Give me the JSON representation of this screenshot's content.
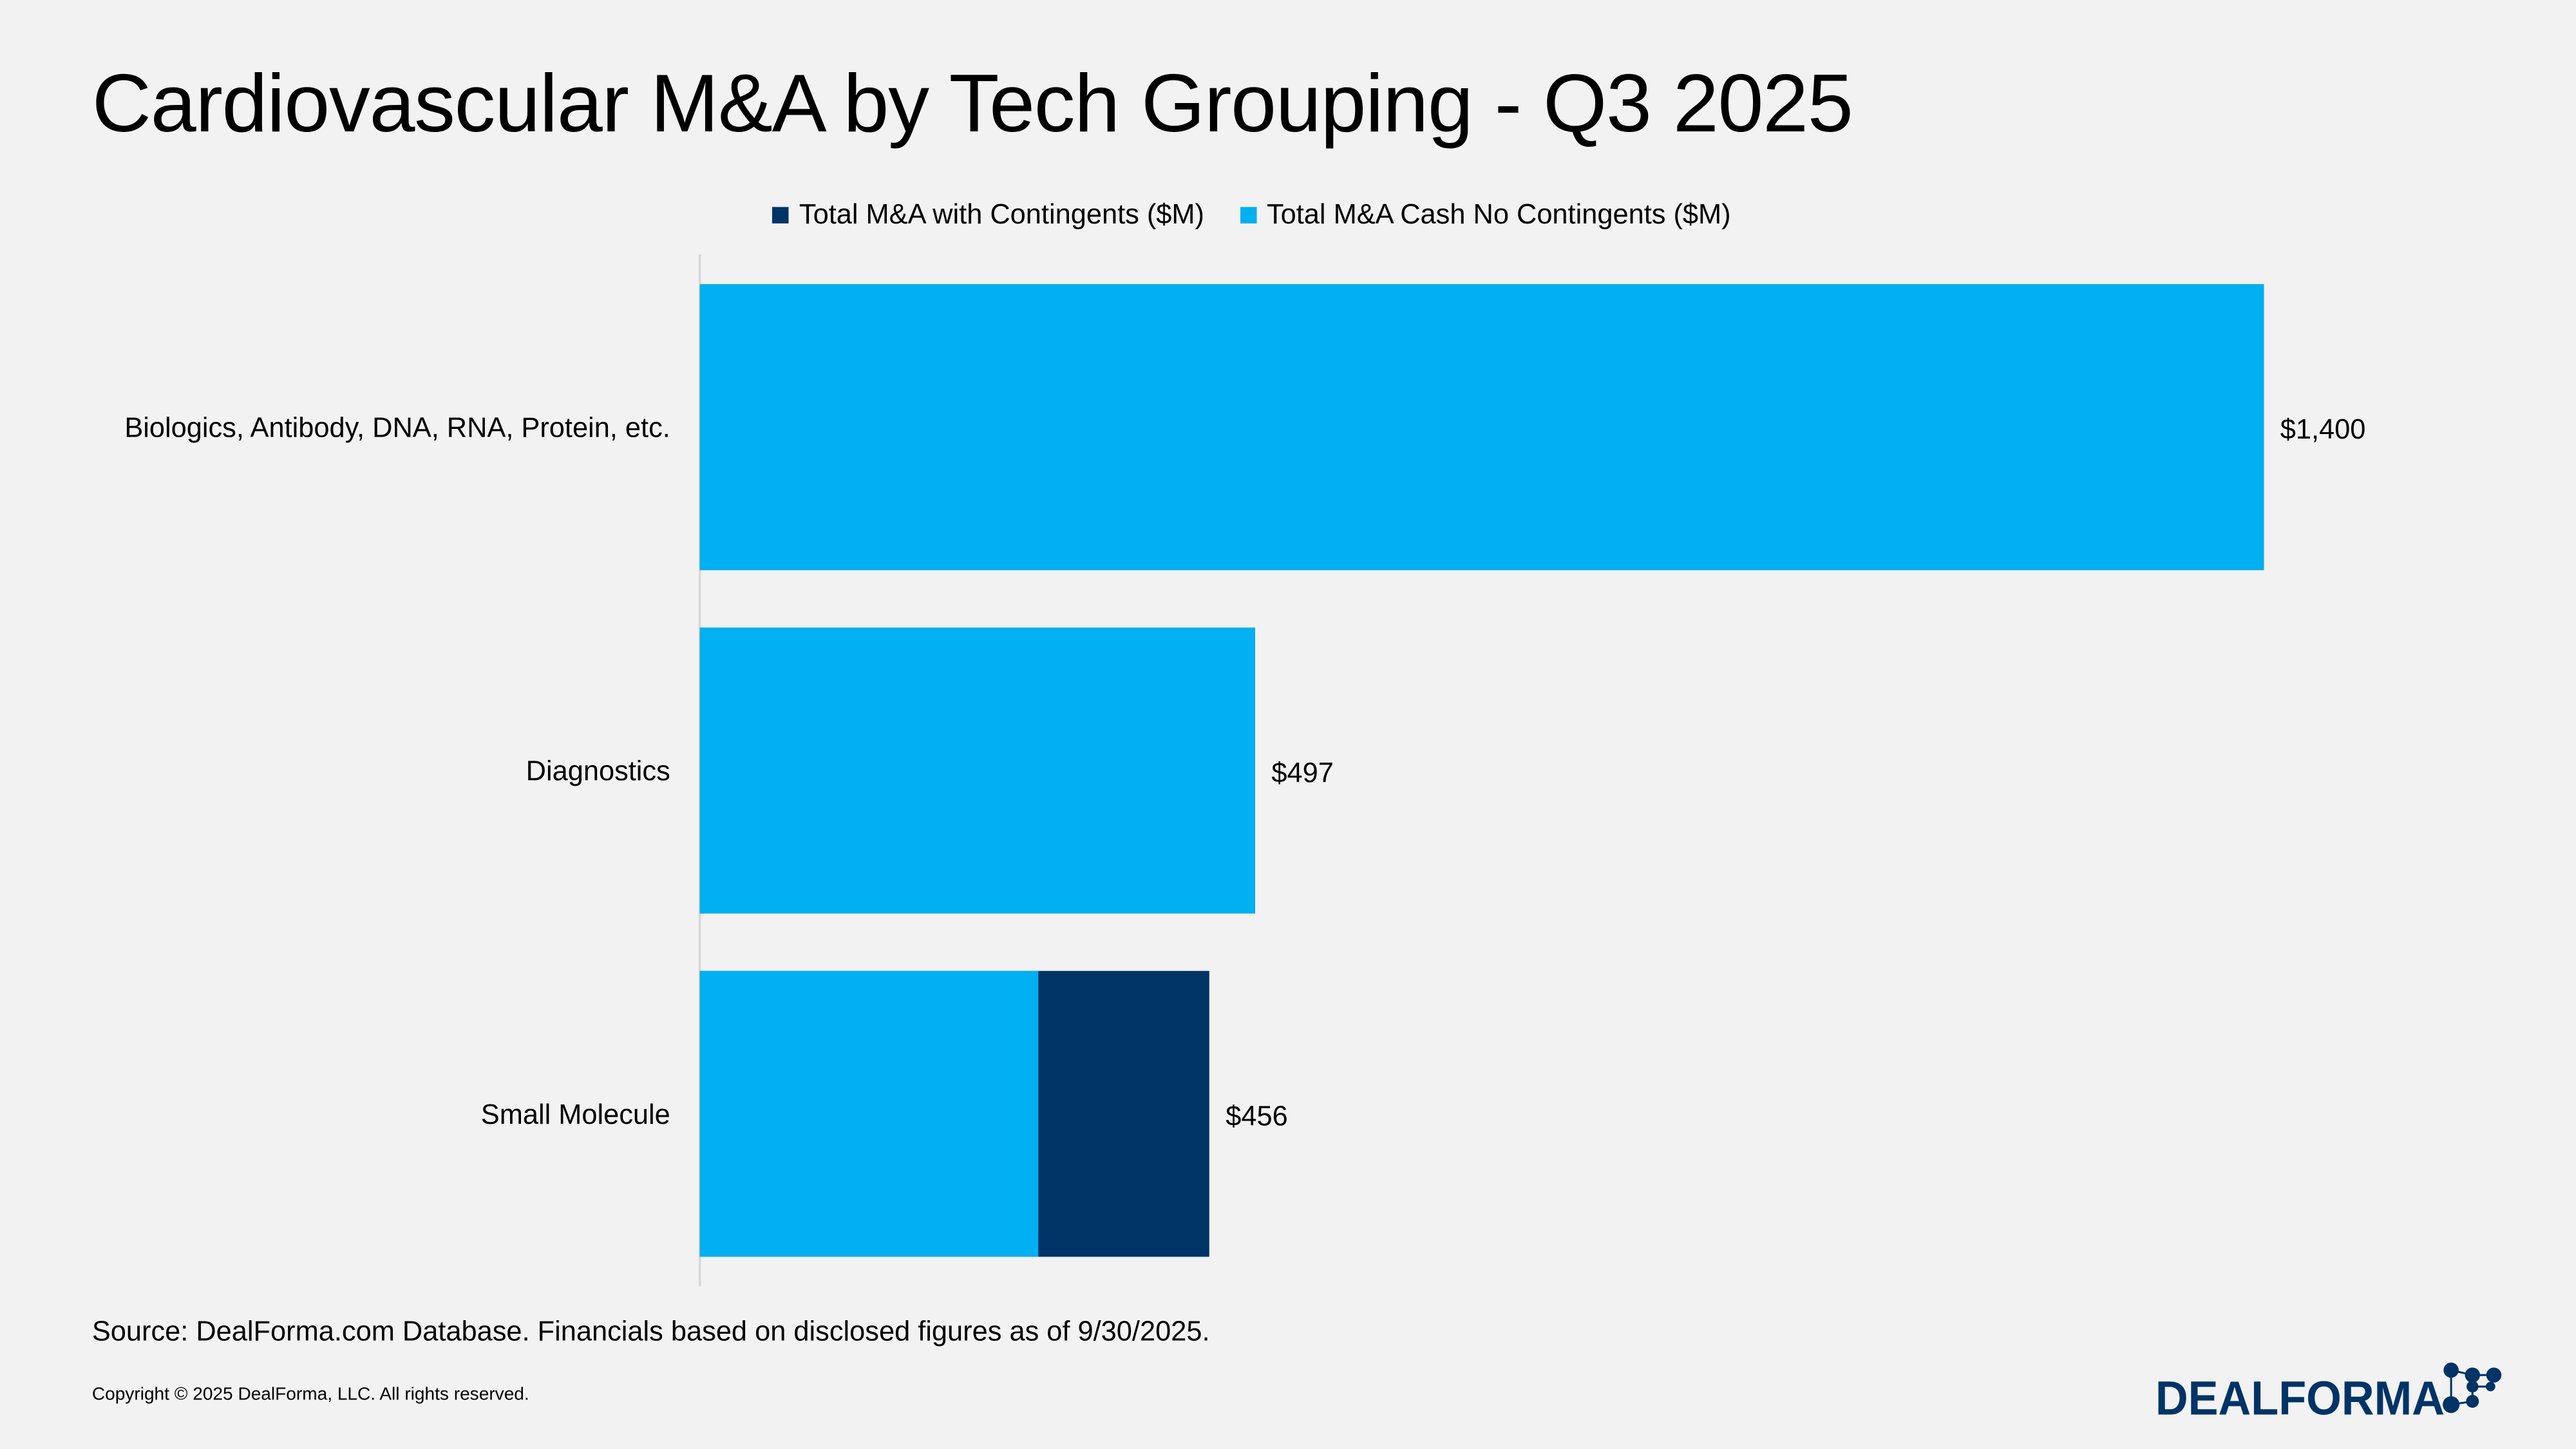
{
  "title": "Cardiovascular M&A by Tech Grouping - Q3 2025",
  "source": "Source: DealForma.com Database. Financials based on disclosed figures as of 9/30/2025.",
  "copyright": "Copyright © 2025 DealForma, LLC. All rights reserved.",
  "logo_text": "DEALFORMA",
  "colors": {
    "with_contingents": "#003366",
    "cash_no_contingents": "#00b0f0",
    "background": "#f2f2f2"
  },
  "chart_data": {
    "type": "bar",
    "orientation": "horizontal",
    "title": "Cardiovascular M&A by Tech Grouping - Q3 2025",
    "categories": [
      "Biologics, Antibody, DNA, RNA, Protein, etc.",
      "Diagnostics",
      "Small Molecule"
    ],
    "series": [
      {
        "name": "Total M&A with Contingents ($M)",
        "values": [
          1400,
          497,
          456
        ],
        "color": "#003366"
      },
      {
        "name": "Total M&A Cash No Contingents ($M)",
        "values": [
          1400,
          497,
          303
        ],
        "color": "#00b0f0"
      }
    ],
    "data_labels": [
      "$1,400",
      "$497",
      "$456"
    ],
    "xlim": [
      0,
      1400
    ],
    "legend": "top",
    "grid": false
  }
}
